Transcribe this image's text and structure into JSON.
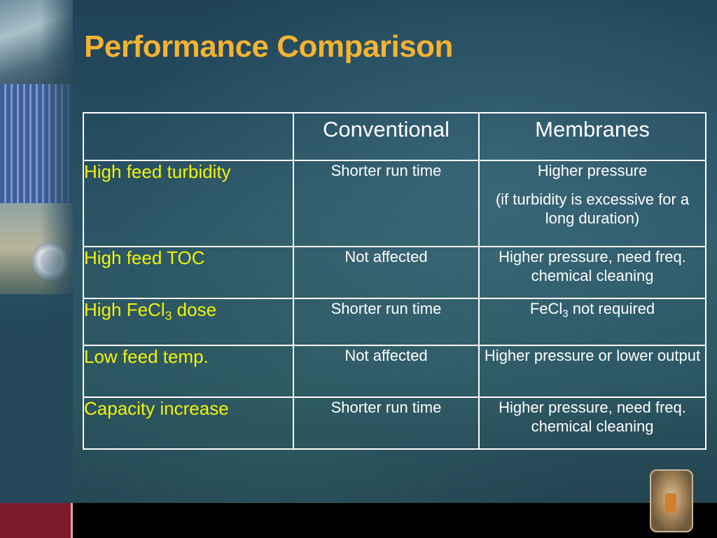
{
  "slide": {
    "title": "Performance Comparison"
  },
  "table": {
    "columns": [
      "",
      "Conventional",
      "Membranes"
    ],
    "rows": [
      {
        "label": "High feed turbidity",
        "conventional": "Shorter run time",
        "membranes": "Higher pressure",
        "membranes_note": "(if turbidity is excessive for a long duration)"
      },
      {
        "label": "High feed TOC",
        "conventional": "Not affected",
        "membranes": "Higher pressure, need freq. chemical cleaning"
      },
      {
        "label_pre": "High FeCl",
        "label_sub": "3",
        "label_post": " dose",
        "conventional": "Shorter run time",
        "membranes_pre": "FeCl",
        "membranes_sub": "3",
        "membranes_post": " not required"
      },
      {
        "label": "Low feed temp.",
        "conventional": "Not affected",
        "membranes": "Higher pressure or lower output"
      },
      {
        "label": "Capacity increase",
        "conventional": "Shorter run time",
        "membranes": "Higher pressure, need freq. chemical cleaning"
      }
    ]
  },
  "colors": {
    "title": "#f5b331",
    "row_label": "#f2f20a",
    "cell_text": "#ffffff",
    "background": "#24485a",
    "bottom_bar": "#000000",
    "bottom_accent": "#7d1b2c"
  }
}
